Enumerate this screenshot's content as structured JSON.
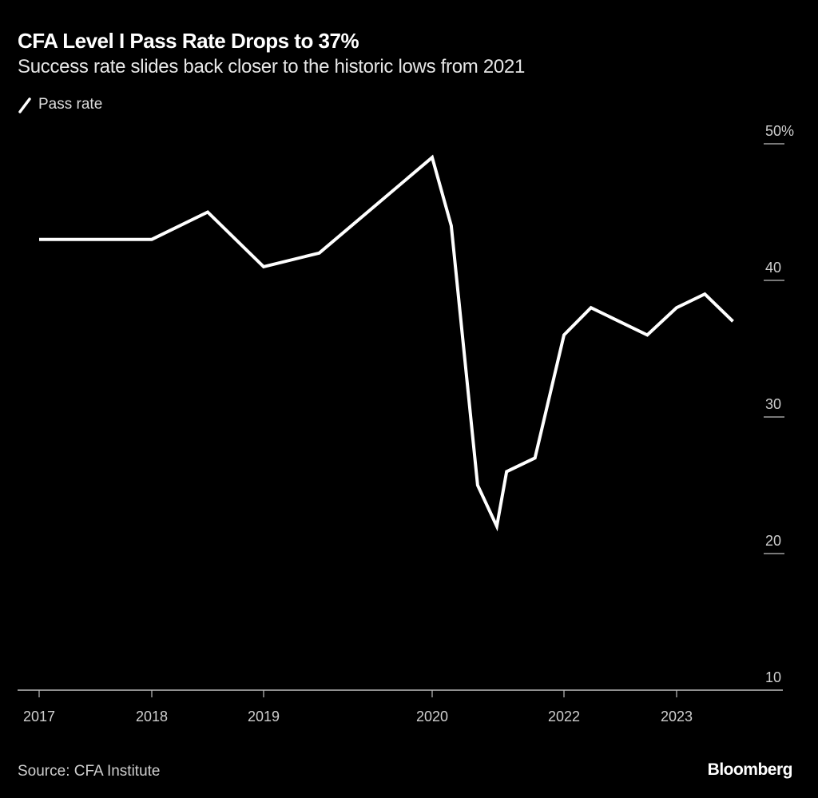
{
  "chart_data": {
    "type": "line",
    "title": "CFA Level I Pass Rate Drops to 37%",
    "subtitle": "Success rate slides back closer to the historic lows from 2021",
    "legend": {
      "position": "top-left",
      "entries": [
        {
          "name": "Pass rate",
          "color": "#ffffff"
        }
      ]
    },
    "xlabel": "",
    "ylabel": "",
    "x_ticks": [
      {
        "value": 2017,
        "label": "2017"
      },
      {
        "value": 2018,
        "label": "2018"
      },
      {
        "value": 2019,
        "label": "2019"
      },
      {
        "value": 2020,
        "label": "2020"
      },
      {
        "value": 2022,
        "label": "2022"
      },
      {
        "value": 2023,
        "label": "2023"
      }
    ],
    "y_ticks": [
      {
        "value": 50,
        "label": "50%"
      },
      {
        "value": 40,
        "label": "40"
      },
      {
        "value": 30,
        "label": "30"
      },
      {
        "value": 20,
        "label": "20"
      },
      {
        "value": 10,
        "label": "10"
      }
    ],
    "ylim": [
      10,
      50
    ],
    "grid": false,
    "series": [
      {
        "name": "Pass rate",
        "color": "#ffffff",
        "x": [
          2017.0,
          2018.0,
          2018.5,
          2019.0,
          2019.33,
          2020.0,
          2020.29,
          2020.69,
          2020.98,
          2021.13,
          2021.56,
          2022.0,
          2022.24,
          2022.74,
          2023.0,
          2023.25,
          2023.5
        ],
        "values": [
          43,
          43,
          45,
          41,
          42,
          49,
          44,
          25,
          22,
          26,
          27,
          36,
          38,
          36,
          38,
          39,
          37
        ]
      }
    ]
  },
  "footer": {
    "source": "Source: CFA Institute",
    "brand": "Bloomberg"
  }
}
